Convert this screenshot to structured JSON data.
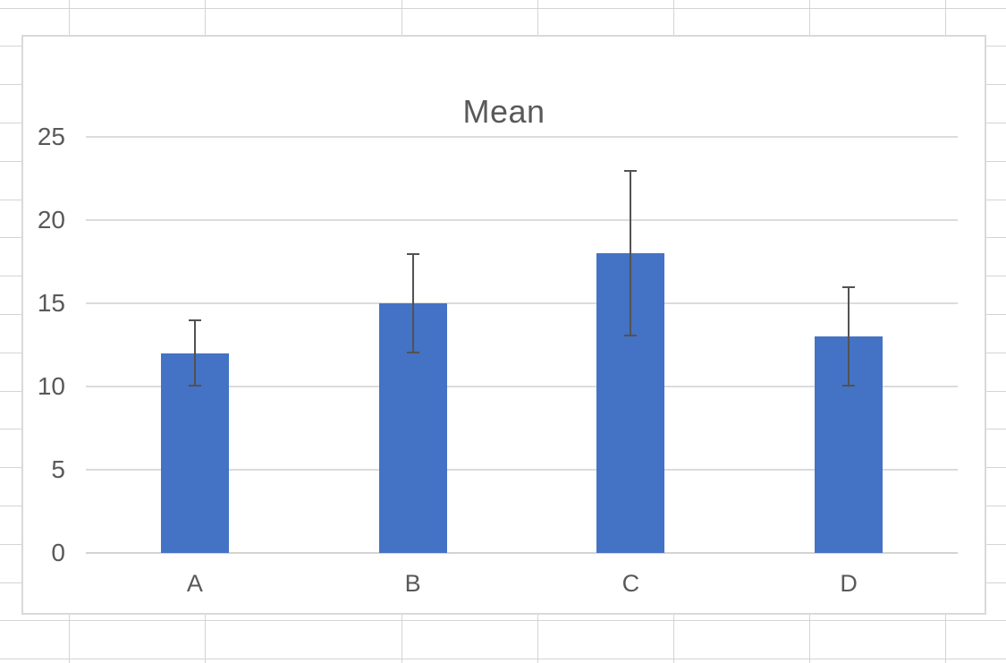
{
  "window": {
    "app_surface": "spreadsheet-with-embedded-chart"
  },
  "chart_data": {
    "type": "bar",
    "title": "Mean",
    "categories": [
      "A",
      "B",
      "C",
      "D"
    ],
    "series": [
      {
        "name": "Mean",
        "values": [
          12,
          15,
          18,
          13
        ]
      }
    ],
    "error_bars": {
      "minus": [
        2,
        3,
        5,
        3
      ],
      "plus": [
        2,
        3,
        5,
        3
      ],
      "low": [
        10,
        12,
        13,
        10
      ],
      "high": [
        14,
        18,
        23,
        16
      ]
    },
    "xlabel": "",
    "ylabel": "",
    "ylim": [
      0,
      25
    ],
    "yticks": [
      0,
      5,
      10,
      15,
      20,
      25
    ],
    "grid": true,
    "legend_position": "none",
    "colors": {
      "bar_fill": "#4472C4",
      "chart_gridline": "#DCDCDC",
      "axis_line": "#D4D4D4",
      "chart_border": "#D9D9D9",
      "chart_background": "#FFFFFF",
      "title_text": "#595959",
      "axis_text": "#595959",
      "error_bar": "#525252",
      "sheet_gridline": "#D4D4D4"
    }
  }
}
